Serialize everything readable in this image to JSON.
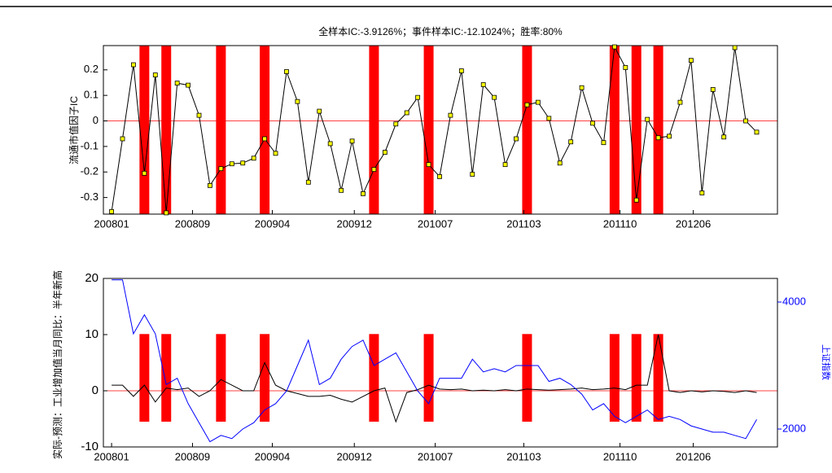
{
  "chart_data": [
    {
      "type": "line",
      "title": "全样本IC:-3.9126%；事件样本IC:-12.1024%；胜率:80%",
      "y_label": "流通市值因子IC",
      "x": [
        1,
        2,
        3,
        4,
        5,
        6,
        7,
        8,
        9,
        10,
        11,
        12,
        13,
        14,
        15,
        16,
        17,
        18,
        19,
        20,
        21,
        22,
        23,
        24,
        25,
        26,
        27,
        28,
        29,
        30,
        31,
        32,
        33,
        34,
        35,
        36,
        37,
        38,
        39,
        40,
        41,
        42,
        43,
        44,
        45,
        46,
        47,
        48,
        49,
        50,
        51,
        52,
        53,
        54,
        55,
        56,
        57,
        58,
        59,
        60
      ],
      "values": [
        -0.355,
        -0.07,
        0.22,
        -0.205,
        0.18,
        -0.36,
        0.148,
        0.14,
        0.022,
        -0.253,
        -0.187,
        -0.168,
        -0.165,
        -0.146,
        -0.07,
        -0.127,
        0.193,
        0.076,
        -0.24,
        0.038,
        -0.089,
        -0.272,
        -0.079,
        -0.285,
        -0.19,
        -0.123,
        -0.012,
        0.032,
        0.092,
        -0.171,
        -0.218,
        0.022,
        0.196,
        -0.209,
        0.142,
        0.092,
        -0.171,
        -0.07,
        0.063,
        0.073,
        0.01,
        -0.165,
        -0.082,
        0.13,
        -0.009,
        -0.085,
        0.29,
        0.209,
        -0.31,
        0.006,
        -0.066,
        -0.06,
        0.073,
        0.237,
        -0.282,
        0.123,
        -0.063,
        0.287,
        0.0,
        -0.044
      ],
      "color": "#000000",
      "marker_color": "#ffff00",
      "events": [
        4,
        6,
        11,
        15,
        25,
        30,
        39,
        47,
        49,
        51
      ],
      "event_color": "#ff0000",
      "zero_line_color": "#ff0000",
      "xlim": [
        0.25,
        61.9
      ],
      "xticks": [
        {
          "value": 1,
          "label": "200801"
        },
        {
          "value": 8.4,
          "label": "200809"
        },
        {
          "value": 15.7,
          "label": "200904"
        },
        {
          "value": 23.2,
          "label": "200912"
        },
        {
          "value": 30.6,
          "label": "201007"
        },
        {
          "value": 38.7,
          "label": "201103"
        },
        {
          "value": 47.5,
          "label": "201110"
        },
        {
          "value": 54.2,
          "label": "201206"
        }
      ],
      "ylim": [
        -0.365,
        0.295
      ],
      "yticks": [
        -0.3,
        -0.2,
        -0.1,
        0,
        0.1,
        0.2
      ]
    },
    {
      "type": "line",
      "y_label": "实际-预测：工业增加值当月同比：半年新高",
      "y2_label": "上证指数",
      "x": [
        1,
        2,
        3,
        4,
        5,
        6,
        7,
        8,
        9,
        10,
        11,
        12,
        13,
        14,
        15,
        16,
        17,
        18,
        19,
        20,
        21,
        22,
        23,
        24,
        25,
        26,
        27,
        28,
        29,
        30,
        31,
        32,
        33,
        34,
        35,
        36,
        37,
        38,
        39,
        40,
        41,
        42,
        43,
        44,
        45,
        46,
        47,
        48,
        49,
        50,
        51,
        52,
        53,
        54,
        55,
        56,
        57,
        58,
        59,
        60
      ],
      "series": [
        {
          "color": "#000000",
          "values": [
            1,
            1,
            -1,
            1,
            -2,
            0.5,
            0.2,
            0.5,
            -1,
            0,
            2,
            1,
            0,
            0,
            5,
            1,
            0,
            -0.5,
            -1,
            -1,
            -0.8,
            -1.5,
            -2,
            -1,
            0,
            0.5,
            -5.5,
            -0.3,
            0.2,
            1,
            0.3,
            0.2,
            0.3,
            0,
            0.1,
            0,
            0.2,
            0,
            0.3,
            0.2,
            0.1,
            0.2,
            0.3,
            0.5,
            0.2,
            0.3,
            0.5,
            0.2,
            1,
            1,
            10,
            0,
            -0.3,
            0,
            -0.2,
            0,
            -0.1,
            -0.3,
            0,
            -0.3
          ]
        },
        {
          "color": "#0000ff",
          "axis": "y2",
          "values": [
            4350,
            4350,
            3500,
            3800,
            3500,
            2700,
            2800,
            2400,
            2100,
            1800,
            1900,
            1850,
            2000,
            2100,
            2300,
            2400,
            2600,
            3000,
            3400,
            2700,
            2800,
            3100,
            3300,
            3400,
            3000,
            3100,
            3200,
            2900,
            2600,
            2400,
            2800,
            2800,
            2800,
            3100,
            2900,
            2950,
            2900,
            3000,
            3000,
            3000,
            2750,
            2800,
            2700,
            2550,
            2300,
            2400,
            2200,
            2100,
            2200,
            2300,
            2150,
            2200,
            2150,
            2050,
            2000,
            1950,
            1950,
            1900,
            1850,
            2150
          ]
        }
      ],
      "events": [
        4,
        6,
        11,
        15,
        25,
        30,
        39,
        47,
        49,
        51
      ],
      "event_color": "#ff0000",
      "zero_line_color": "#ff0000",
      "xlim": [
        0.25,
        61.9
      ],
      "xticks": [
        {
          "value": 1,
          "label": "200801"
        },
        {
          "value": 8.4,
          "label": "200809"
        },
        {
          "value": 15.7,
          "label": "200904"
        },
        {
          "value": 23.2,
          "label": "200912"
        },
        {
          "value": 30.6,
          "label": "201007"
        },
        {
          "value": 38.7,
          "label": "201103"
        },
        {
          "value": 47.5,
          "label": "201110"
        },
        {
          "value": 54.2,
          "label": "201206"
        }
      ],
      "ylim": [
        -10,
        20
      ],
      "yticks": [
        -10,
        0,
        10,
        20
      ],
      "y2lim": [
        1718,
        4372
      ],
      "y2ticks": [
        2000,
        4000
      ]
    }
  ]
}
